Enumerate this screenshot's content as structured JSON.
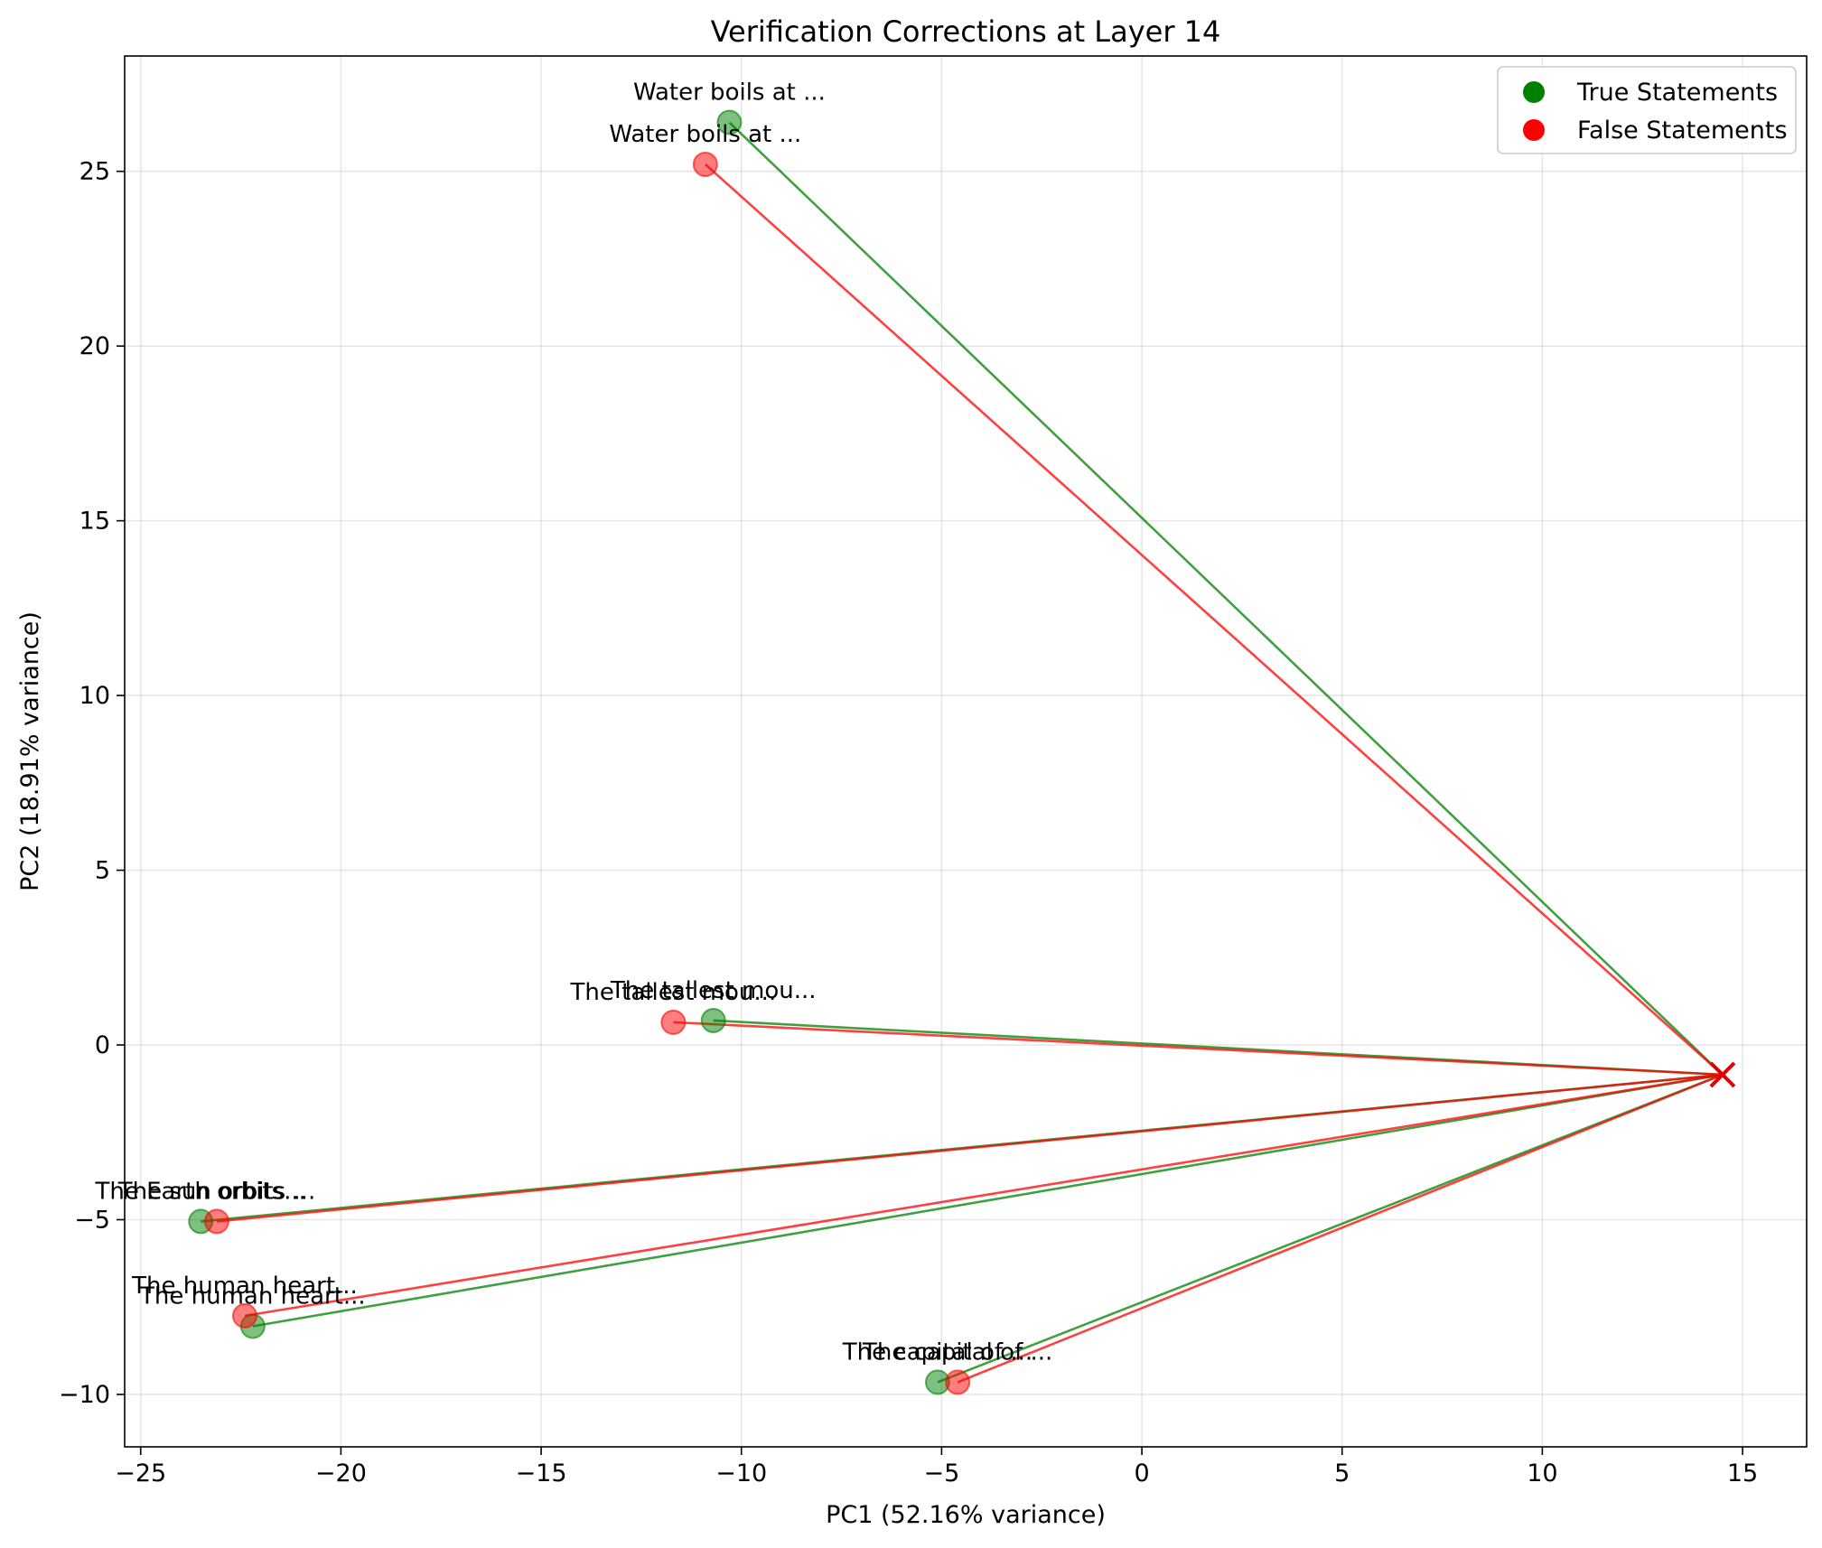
{
  "chart_data": {
    "type": "scatter",
    "title": "Verification Corrections at Layer 14",
    "xlabel": "PC1 (52.16% variance)",
    "ylabel": "PC2 (18.91% variance)",
    "xlim": [
      -25.4,
      16.6
    ],
    "ylim": [
      -11.5,
      28.3
    ],
    "xticks": [
      -25,
      -20,
      -15,
      -10,
      -5,
      0,
      5,
      10,
      15
    ],
    "yticks": [
      -10,
      -5,
      0,
      5,
      10,
      15,
      20,
      25
    ],
    "grid": true,
    "legend_position": "top-right",
    "target_point": {
      "x": 14.5,
      "y": -0.85,
      "marker": "x",
      "color": "#e00000"
    },
    "series": [
      {
        "name": "True Statements",
        "color": "#008000",
        "points": [
          {
            "label": "Water boils at ...",
            "x": -10.3,
            "y": 26.4
          },
          {
            "label": "The tallest mou...",
            "x": -10.7,
            "y": 0.7
          },
          {
            "label": "The Earth orbits...",
            "x": -23.5,
            "y": -5.05
          },
          {
            "label": "The human heart...",
            "x": -22.2,
            "y": -8.05
          },
          {
            "label": "The capital of ...",
            "x": -5.1,
            "y": -9.65
          }
        ]
      },
      {
        "name": "False Statements",
        "color": "#ff0000",
        "points": [
          {
            "label": "Water boils at ...",
            "x": -10.9,
            "y": 25.2
          },
          {
            "label": "The tallest mou...",
            "x": -11.7,
            "y": 0.65
          },
          {
            "label": "The sun orbits ...",
            "x": -23.1,
            "y": -5.05
          },
          {
            "label": "The human heart...",
            "x": -22.4,
            "y": -7.75
          },
          {
            "label": "The capital of ...",
            "x": -4.6,
            "y": -9.65
          }
        ]
      }
    ]
  }
}
